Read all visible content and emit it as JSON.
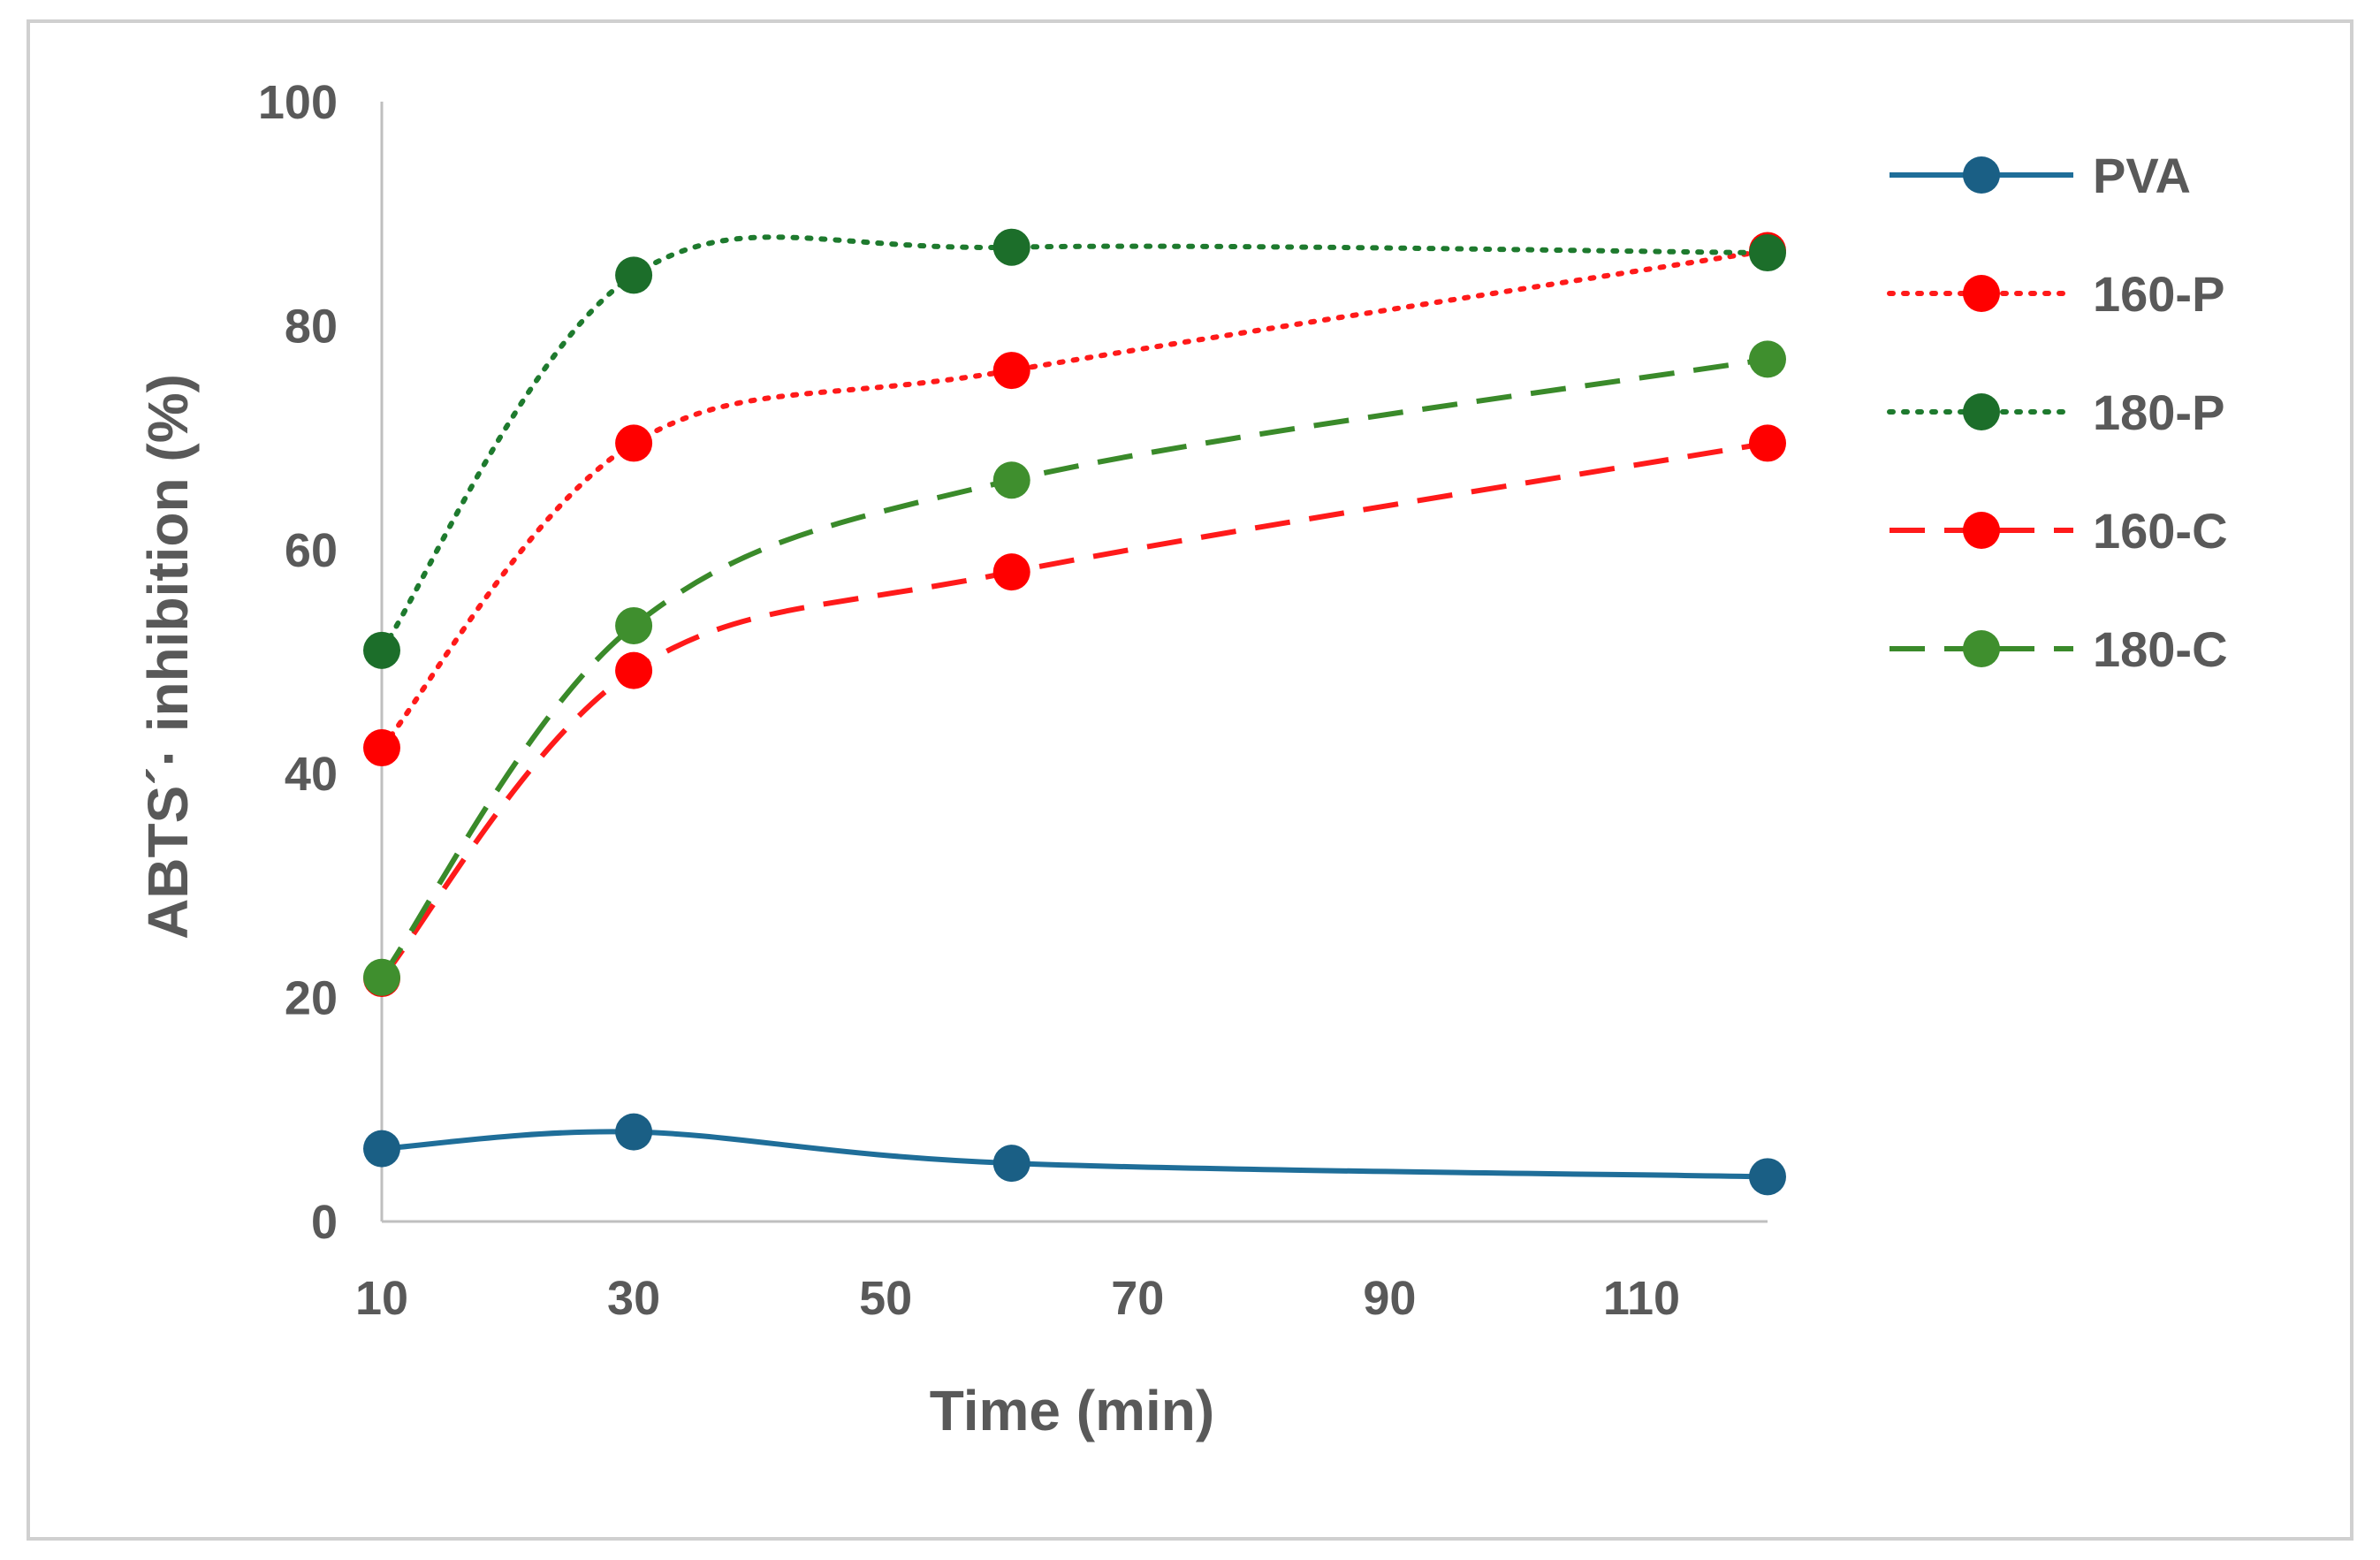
{
  "chart_data": {
    "type": "line",
    "title": "",
    "xlabel": "Time (min)",
    "ylabel": "ABTS´· inhibition (%)",
    "xlim": [
      10,
      120
    ],
    "ylim": [
      0,
      100
    ],
    "xticks": [
      10,
      30,
      50,
      70,
      90,
      110
    ],
    "yticks": [
      0,
      20,
      40,
      60,
      80,
      100
    ],
    "x": [
      10,
      30,
      60,
      120
    ],
    "legend_position": "right",
    "series": [
      {
        "name": "PVA",
        "values": [
          6.5,
          8.0,
          5.2,
          4.0
        ],
        "color": "#1f6e99",
        "style": "solid",
        "markerColor": "#1a5f85"
      },
      {
        "name": "160-P",
        "values": [
          42.3,
          69.5,
          76.0,
          86.7
        ],
        "color": "#ff1a1a",
        "style": "dotted",
        "markerColor": "#ff0000"
      },
      {
        "name": "180-P",
        "values": [
          51.0,
          84.5,
          87.0,
          86.5
        ],
        "color": "#1e7a2e",
        "style": "dotted",
        "markerColor": "#1c6e2a"
      },
      {
        "name": "160-C",
        "values": [
          21.7,
          49.2,
          58.0,
          69.5
        ],
        "color": "#ff1a1a",
        "style": "dashed",
        "markerColor": "#ff0000"
      },
      {
        "name": "180-C",
        "values": [
          21.8,
          53.2,
          66.2,
          77.0
        ],
        "color": "#3a8a2a",
        "style": "dashed",
        "markerColor": "#3f8f2e"
      }
    ]
  }
}
